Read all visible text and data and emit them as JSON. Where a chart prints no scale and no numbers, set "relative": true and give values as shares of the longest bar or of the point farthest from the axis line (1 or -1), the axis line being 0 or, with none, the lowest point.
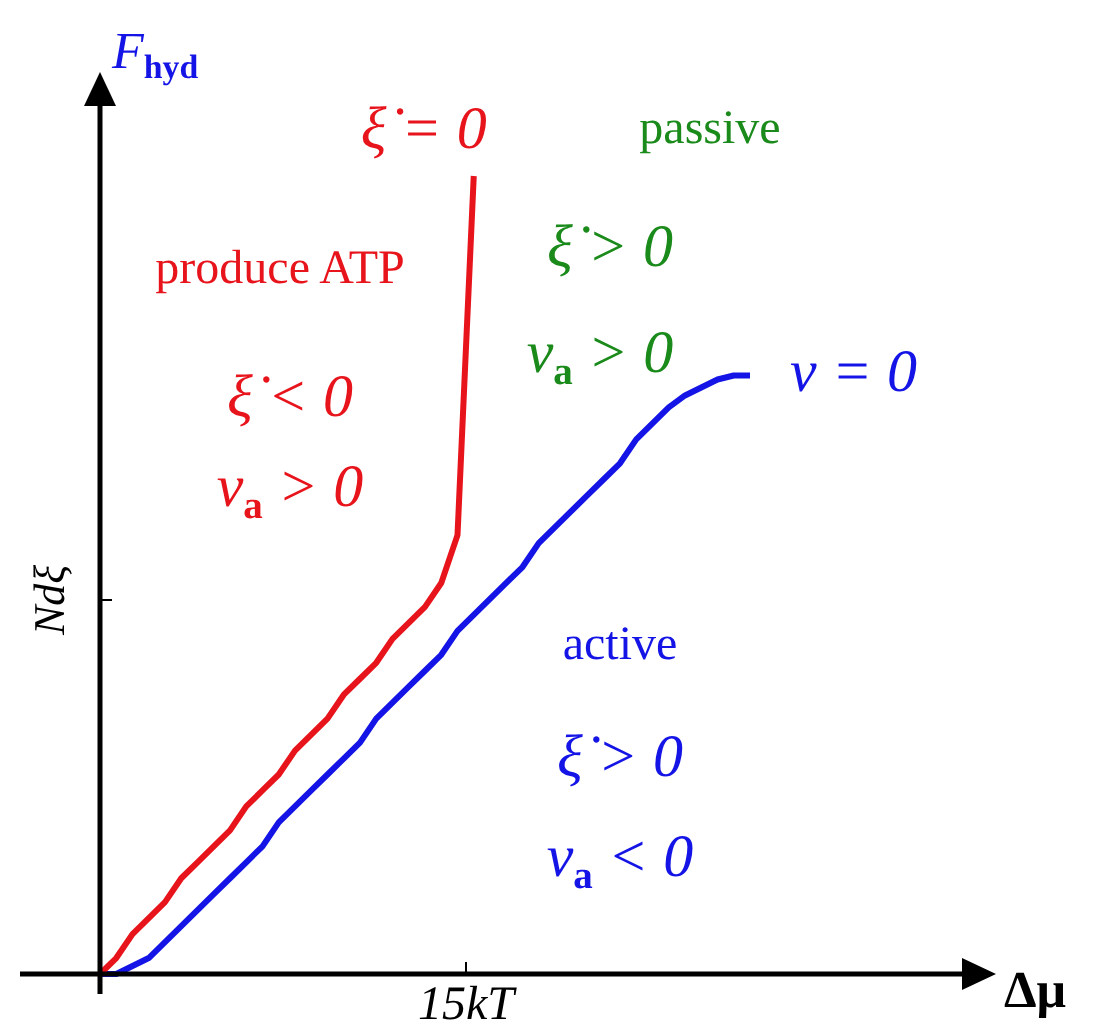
{
  "chart_data": {
    "type": "line",
    "xlabel": "Δμ",
    "ylabel": "F$_{hyd}$",
    "relative": true,
    "legend": false,
    "marker": "none",
    "line_style": "solid",
    "categories": [
      null,
      null,
      null,
      null,
      null,
      null,
      null,
      null,
      null,
      null,
      null,
      null,
      null,
      null,
      null,
      null,
      null,
      null,
      null,
      null,
      null,
      null,
      null,
      null,
      null,
      null,
      null,
      null,
      null,
      null,
      null,
      null,
      null,
      null,
      null,
      null,
      null,
      null,
      null,
      null,
      null
    ],
    "series": [
      {
        "name": "ξ̇ = 0",
        "color": "#e8141c",
        "values": [
          0,
          0.02,
          0.05,
          0.07,
          0.09,
          0.12,
          0.14,
          0.16,
          0.18,
          0.21,
          0.23,
          0.25,
          0.28,
          0.3,
          0.32,
          0.35,
          0.37,
          0.39,
          0.42,
          0.44,
          0.46,
          0.49,
          0.55,
          1,
          null,
          null,
          null,
          null,
          null,
          null,
          null,
          null,
          null,
          null,
          null,
          null,
          null,
          null,
          null,
          null,
          null
        ]
      },
      {
        "name": "v = 0",
        "color": "#1414e6",
        "values": [
          0,
          0,
          0.01,
          0.02,
          0.04,
          0.06,
          0.08,
          0.1,
          0.12,
          0.14,
          0.16,
          0.19,
          0.21,
          0.23,
          0.25,
          0.27,
          0.29,
          0.32,
          0.34,
          0.36,
          0.38,
          0.4,
          0.43,
          0.45,
          0.47,
          0.49,
          0.51,
          0.54,
          0.56,
          0.58,
          0.6,
          0.62,
          0.64,
          0.67,
          0.69,
          0.71,
          0.725,
          0.735,
          0.745,
          0.75,
          0.75
        ]
      }
    ],
    "annotations": [
      "passive",
      "ξ̇ > 0",
      "v$_{a}$ > 0",
      "produce ATP",
      "ξ̇ < 0",
      "v$_{a}$ > 0",
      "active",
      "ξ̇ > 0",
      "v$_{a}$ < 0",
      "15kT",
      "Ndξ"
    ]
  }
}
